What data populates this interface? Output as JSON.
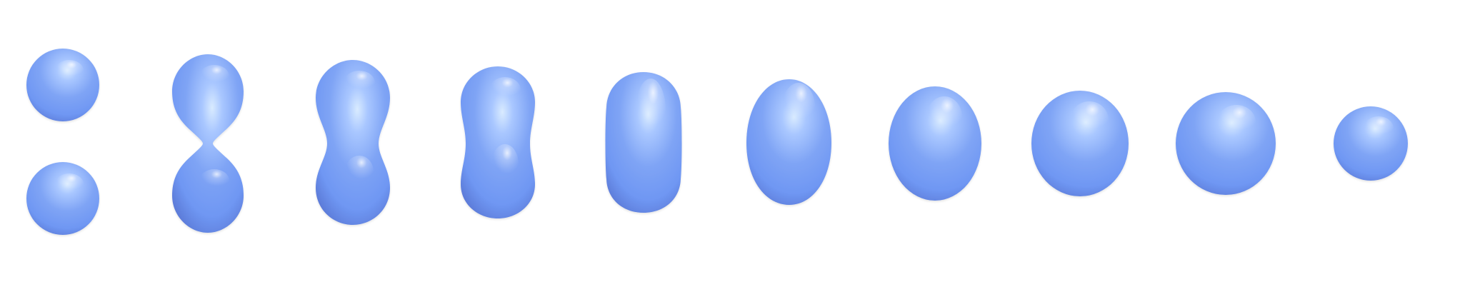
{
  "scene": {
    "background": "#ffffff",
    "blob_base_color": "#6f97f3",
    "blob_highlight_color": "#d9ebff",
    "blob_shadow_color": "#5b79d6",
    "frames": [
      {
        "name": "two-separate-spheres"
      },
      {
        "name": "pinched-neck"
      },
      {
        "name": "peanut-neck"
      },
      {
        "name": "waisted-capsule"
      },
      {
        "name": "capsule"
      },
      {
        "name": "tall-ellipsoid"
      },
      {
        "name": "ellipsoid"
      },
      {
        "name": "rounded-ellipsoid"
      },
      {
        "name": "near-sphere"
      },
      {
        "name": "small-sphere"
      }
    ]
  }
}
